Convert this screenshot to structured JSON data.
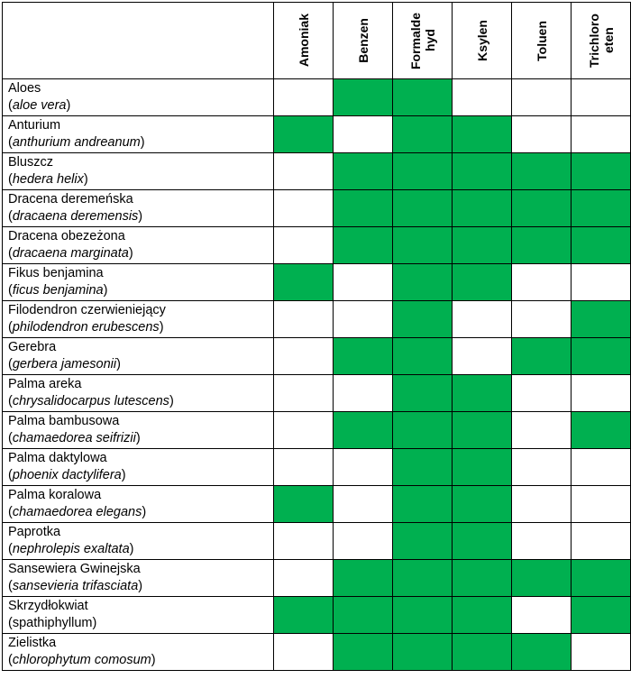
{
  "colors": {
    "marked": "#00b050",
    "empty": "#ffffff"
  },
  "columns": [
    "Amoniak",
    "Benzen",
    "Formalde hyd",
    "Ksylen",
    "Toluen",
    "Trichloro eten"
  ],
  "rows": [
    {
      "name": "Aloes",
      "sci": "aloe vera",
      "sci_italic": true,
      "cells": [
        false,
        true,
        true,
        false,
        false,
        false
      ]
    },
    {
      "name": "Anturium",
      "sci": "anthurium andreanum",
      "sci_italic": true,
      "cells": [
        true,
        false,
        true,
        true,
        false,
        false
      ]
    },
    {
      "name": "Bluszcz",
      "sci": "hedera helix",
      "sci_italic": true,
      "cells": [
        false,
        true,
        true,
        true,
        true,
        true
      ]
    },
    {
      "name": "Dracena deremeńska",
      "sci": "dracaena deremensis",
      "sci_italic": true,
      "cells": [
        false,
        true,
        true,
        true,
        true,
        true
      ]
    },
    {
      "name": "Dracena obezeżona",
      "sci": "dracaena marginata",
      "sci_italic": true,
      "cells": [
        false,
        true,
        true,
        true,
        true,
        true
      ]
    },
    {
      "name": "Fikus benjamina",
      "sci": "ficus benjamina",
      "sci_italic": true,
      "cells": [
        true,
        false,
        true,
        true,
        false,
        false
      ]
    },
    {
      "name": "Filodendron czerwieniejący",
      "sci": "philodendron erubescens",
      "sci_italic": true,
      "cells": [
        false,
        false,
        true,
        false,
        false,
        true
      ]
    },
    {
      "name": "Gerebra",
      "sci": "gerbera jamesonii",
      "sci_italic": true,
      "cells": [
        false,
        true,
        true,
        false,
        true,
        true
      ]
    },
    {
      "name": "Palma areka",
      "sci": "chrysalidocarpus lutescens",
      "sci_italic": true,
      "cells": [
        false,
        false,
        true,
        true,
        false,
        false
      ]
    },
    {
      "name": "Palma bambusowa",
      "sci": "chamaedorea seifrizii",
      "sci_italic": true,
      "cells": [
        false,
        true,
        true,
        true,
        false,
        true
      ]
    },
    {
      "name": "Palma daktylowa",
      "sci": "phoenix dactylifera",
      "sci_italic": true,
      "cells": [
        false,
        false,
        true,
        true,
        false,
        false
      ]
    },
    {
      "name": "Palma koralowa",
      "sci": "chamaedorea elegans",
      "sci_italic": true,
      "cells": [
        true,
        false,
        true,
        true,
        false,
        false
      ]
    },
    {
      "name": "Paprotka",
      "sci": "nephrolepis exaltata",
      "sci_italic": true,
      "cells": [
        false,
        false,
        true,
        true,
        false,
        false
      ]
    },
    {
      "name": "Sansewiera Gwinejska",
      "sci": "sansevieria trifasciata",
      "sci_italic": true,
      "cells": [
        false,
        true,
        true,
        true,
        true,
        true
      ]
    },
    {
      "name": "Skrzydłokwiat",
      "sci": "spathiphyllum",
      "sci_italic": false,
      "cells": [
        true,
        true,
        true,
        true,
        false,
        true
      ]
    },
    {
      "name": "Zielistka",
      "sci": "chlorophytum comosum",
      "sci_italic": true,
      "cells": [
        false,
        true,
        true,
        true,
        true,
        false
      ]
    }
  ]
}
